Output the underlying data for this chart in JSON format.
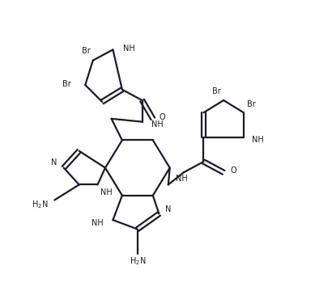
{
  "bg_color": "#ffffff",
  "line_color": "#1a1a2e",
  "line_width": 1.6,
  "figsize": [
    3.89,
    3.81
  ],
  "dpi": 100,
  "xlim": [
    0,
    10
  ],
  "ylim": [
    0,
    10
  ],
  "font_size": 7.0
}
